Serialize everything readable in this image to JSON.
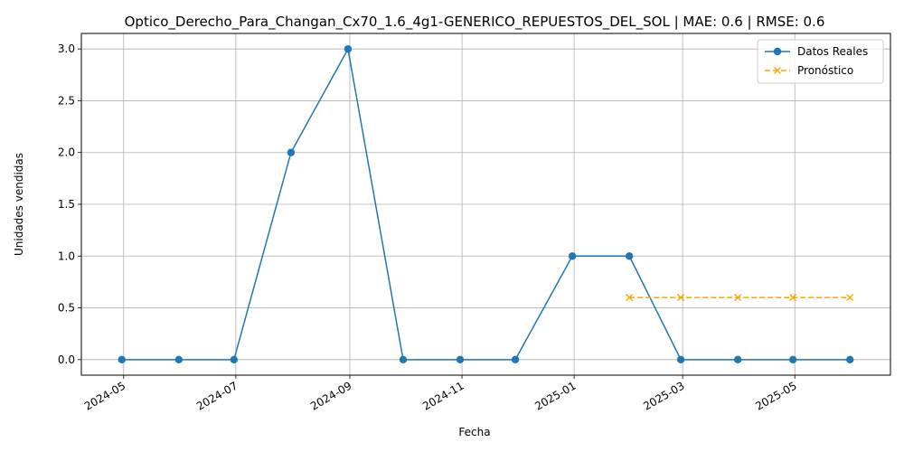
{
  "chart_data": {
    "type": "line",
    "title": "Optico_Derecho_Para_Changan_Cx70_1.6_4g1-GENERICO_REPUESTOS_DEL_SOL | MAE: 0.6 | RMSE: 0.6",
    "xlabel": "Fecha",
    "ylabel": "Unidades vendidas",
    "x_tick_labels": [
      "2024-05",
      "2024-07",
      "2024-09",
      "2024-11",
      "2025-01",
      "2025-03",
      "2025-05"
    ],
    "y_tick_labels": [
      "0.0",
      "0.5",
      "1.0",
      "1.5",
      "2.0",
      "2.5",
      "3.0"
    ],
    "ylim": [
      -0.15,
      3.15
    ],
    "xlim": [
      "2024-04-08",
      "2025-06-22"
    ],
    "grid": true,
    "legend_position": "top-right",
    "series": [
      {
        "name": "Datos Reales",
        "color": "#1f77b4",
        "marker": "circle",
        "linestyle": "solid",
        "x": [
          "2024-04-30",
          "2024-05-31",
          "2024-06-30",
          "2024-07-31",
          "2024-08-31",
          "2024-09-30",
          "2024-10-31",
          "2024-11-30",
          "2024-12-31",
          "2025-01-31",
          "2025-02-28",
          "2025-03-31",
          "2025-04-30",
          "2025-05-31"
        ],
        "values": [
          0,
          0,
          0,
          2,
          3,
          0,
          0,
          0,
          1,
          1,
          0,
          0,
          0,
          0
        ]
      },
      {
        "name": "Pronóstico",
        "color": "#ffa500",
        "marker": "x",
        "linestyle": "dashed",
        "x": [
          "2025-01-31",
          "2025-02-28",
          "2025-03-31",
          "2025-04-30",
          "2025-05-31"
        ],
        "values": [
          0.6,
          0.6,
          0.6,
          0.6,
          0.6
        ]
      }
    ]
  }
}
